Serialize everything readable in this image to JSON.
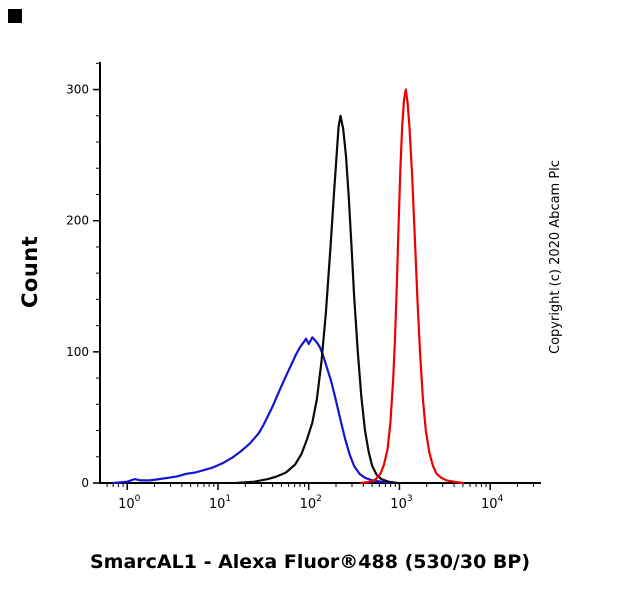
{
  "figure": {
    "copyright": "Copyright (c) 2020 Abcam Plc"
  },
  "chart_data": {
    "type": "line",
    "subtype": "flow-cytometry-histogram",
    "title": "",
    "xlabel": "SmarcAL1 - Alexa Fluor®488 (530/30 BP)",
    "ylabel": "Count",
    "x_scale": "log10",
    "xlim_log": [
      -0.3,
      4.56
    ],
    "ylim": [
      0,
      321
    ],
    "y_ticks": [
      0,
      100,
      200,
      300
    ],
    "y_minor_step": 20,
    "x_tick_exponents": [
      0,
      1,
      2,
      3,
      4
    ],
    "grid": false,
    "legend": "none",
    "series": [
      {
        "id": "blue-curve",
        "color": "#1414d2",
        "peak": {
          "x": 100,
          "count": 111
        },
        "points": [
          [
            -0.15,
            0
          ],
          [
            0.0,
            1
          ],
          [
            0.08,
            3
          ],
          [
            0.15,
            2
          ],
          [
            0.25,
            2
          ],
          [
            0.35,
            3
          ],
          [
            0.45,
            4
          ],
          [
            0.55,
            5
          ],
          [
            0.65,
            7
          ],
          [
            0.75,
            8
          ],
          [
            0.85,
            10
          ],
          [
            0.95,
            12
          ],
          [
            1.05,
            15
          ],
          [
            1.15,
            19
          ],
          [
            1.25,
            24
          ],
          [
            1.35,
            30
          ],
          [
            1.45,
            38
          ],
          [
            1.5,
            44
          ],
          [
            1.55,
            51
          ],
          [
            1.6,
            58
          ],
          [
            1.65,
            66
          ],
          [
            1.7,
            74
          ],
          [
            1.74,
            80
          ],
          [
            1.78,
            86
          ],
          [
            1.82,
            92
          ],
          [
            1.86,
            98
          ],
          [
            1.9,
            103
          ],
          [
            1.94,
            107
          ],
          [
            1.97,
            110
          ],
          [
            2.0,
            106
          ],
          [
            2.04,
            111
          ],
          [
            2.08,
            108
          ],
          [
            2.12,
            104
          ],
          [
            2.16,
            97
          ],
          [
            2.2,
            88
          ],
          [
            2.25,
            77
          ],
          [
            2.3,
            63
          ],
          [
            2.35,
            48
          ],
          [
            2.4,
            34
          ],
          [
            2.45,
            22
          ],
          [
            2.5,
            13
          ],
          [
            2.56,
            7
          ],
          [
            2.62,
            4
          ],
          [
            2.7,
            2
          ],
          [
            2.8,
            1
          ],
          [
            2.95,
            0
          ]
        ]
      },
      {
        "id": "black-curve",
        "color": "#0a0a0a",
        "peak": {
          "x": 215,
          "count": 280
        },
        "points": [
          [
            1.2,
            0
          ],
          [
            1.4,
            1
          ],
          [
            1.55,
            3
          ],
          [
            1.65,
            5
          ],
          [
            1.75,
            8
          ],
          [
            1.85,
            14
          ],
          [
            1.92,
            22
          ],
          [
            1.98,
            33
          ],
          [
            2.04,
            46
          ],
          [
            2.09,
            64
          ],
          [
            2.14,
            92
          ],
          [
            2.19,
            130
          ],
          [
            2.24,
            180
          ],
          [
            2.28,
            222
          ],
          [
            2.31,
            252
          ],
          [
            2.33,
            272
          ],
          [
            2.35,
            280
          ],
          [
            2.38,
            270
          ],
          [
            2.41,
            250
          ],
          [
            2.44,
            220
          ],
          [
            2.47,
            182
          ],
          [
            2.5,
            143
          ],
          [
            2.54,
            101
          ],
          [
            2.58,
            66
          ],
          [
            2.62,
            40
          ],
          [
            2.66,
            24
          ],
          [
            2.7,
            13
          ],
          [
            2.75,
            6
          ],
          [
            2.8,
            3
          ],
          [
            2.88,
            1
          ],
          [
            2.98,
            0
          ]
        ]
      },
      {
        "id": "red-curve",
        "color": "#ee0000",
        "peak": {
          "x": 1050,
          "count": 300
        },
        "points": [
          [
            2.58,
            0
          ],
          [
            2.68,
            1
          ],
          [
            2.74,
            3
          ],
          [
            2.79,
            7
          ],
          [
            2.83,
            14
          ],
          [
            2.87,
            26
          ],
          [
            2.9,
            46
          ],
          [
            2.93,
            78
          ],
          [
            2.95,
            108
          ],
          [
            2.97,
            148
          ],
          [
            2.99,
            195
          ],
          [
            3.01,
            240
          ],
          [
            3.03,
            272
          ],
          [
            3.05,
            292
          ],
          [
            3.07,
            300
          ],
          [
            3.09,
            290
          ],
          [
            3.11,
            272
          ],
          [
            3.14,
            235
          ],
          [
            3.17,
            186
          ],
          [
            3.2,
            137
          ],
          [
            3.23,
            96
          ],
          [
            3.26,
            63
          ],
          [
            3.29,
            40
          ],
          [
            3.33,
            23
          ],
          [
            3.37,
            13
          ],
          [
            3.41,
            7
          ],
          [
            3.46,
            4
          ],
          [
            3.52,
            2
          ],
          [
            3.6,
            1
          ],
          [
            3.7,
            0
          ]
        ]
      }
    ]
  }
}
